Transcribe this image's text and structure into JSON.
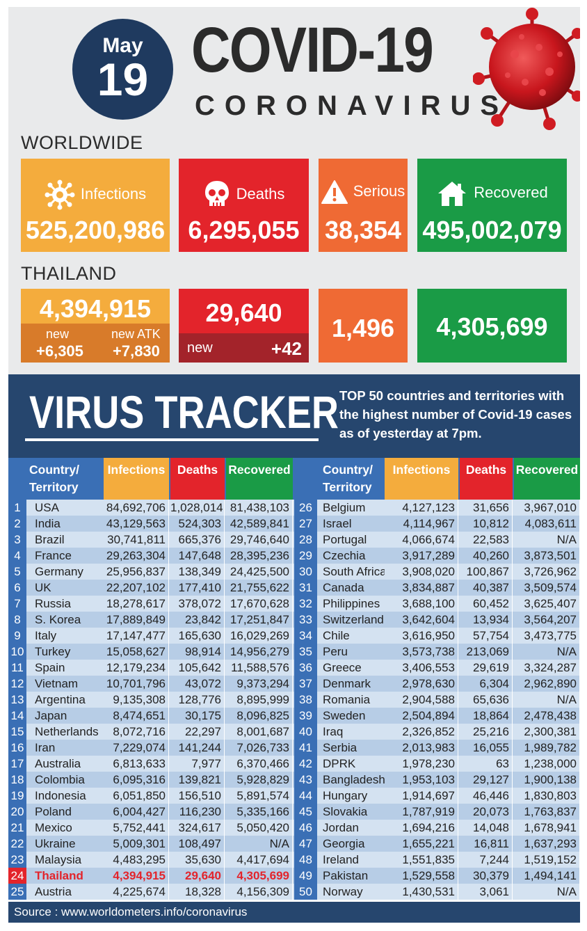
{
  "header": {
    "month": "May",
    "day": "19",
    "title": "COVID-19",
    "subtitle": "CORONAVIRUS"
  },
  "worldwide": {
    "label": "WORLDWIDE",
    "infections_label": "Infections",
    "infections": "525,200,986",
    "deaths_label": "Deaths",
    "deaths": "6,295,055",
    "serious_label": "Serious",
    "serious": "38,354",
    "recovered_label": "Recovered",
    "recovered": "495,002,079"
  },
  "thailand": {
    "label": "THAILAND",
    "infections": "4,394,915",
    "new_label": "new",
    "new_infections": "+6,305",
    "new_atk_label": "new ATK",
    "new_atk": "+7,830",
    "deaths": "29,640",
    "deaths_new_label": "new",
    "deaths_new": "+42",
    "serious": "1,496",
    "recovered": "4,305,699"
  },
  "tracker": {
    "title": "VIRUS TRACKER",
    "desc_bold": "TOP 50",
    "desc_rest": " countries and territories with the highest number of Covid-19 cases as of yesterday at 7pm."
  },
  "table": {
    "headers": {
      "country": "Country/ Territory",
      "infections": "Infections",
      "deaths": "Deaths",
      "recovered": "Recovered"
    },
    "highlight_rank": "24",
    "rows": [
      [
        "1",
        "USA",
        "84,692,706",
        "1,028,014",
        "81,438,103"
      ],
      [
        "2",
        "India",
        "43,129,563",
        "524,303",
        "42,589,841"
      ],
      [
        "3",
        "Brazil",
        "30,741,811",
        "665,376",
        "29,746,640"
      ],
      [
        "4",
        "France",
        "29,263,304",
        "147,648",
        "28,395,236"
      ],
      [
        "5",
        "Germany",
        "25,956,837",
        "138,349",
        "24,425,500"
      ],
      [
        "6",
        "UK",
        "22,207,102",
        "177,410",
        "21,755,622"
      ],
      [
        "7",
        "Russia",
        "18,278,617",
        "378,072",
        "17,670,628"
      ],
      [
        "8",
        "S. Korea",
        "17,889,849",
        "23,842",
        "17,251,847"
      ],
      [
        "9",
        "Italy",
        "17,147,477",
        "165,630",
        "16,029,269"
      ],
      [
        "10",
        "Turkey",
        "15,058,627",
        "98,914",
        "14,956,279"
      ],
      [
        "11",
        "Spain",
        "12,179,234",
        "105,642",
        "11,588,576"
      ],
      [
        "12",
        "Vietnam",
        "10,701,796",
        "43,072",
        "9,373,294"
      ],
      [
        "13",
        "Argentina",
        "9,135,308",
        "128,776",
        "8,895,999"
      ],
      [
        "14",
        "Japan",
        "8,474,651",
        "30,175",
        "8,096,825"
      ],
      [
        "15",
        "Netherlands",
        "8,072,716",
        "22,297",
        "8,001,687"
      ],
      [
        "16",
        "Iran",
        "7,229,074",
        "141,244",
        "7,026,733"
      ],
      [
        "17",
        "Australia",
        "6,813,633",
        "7,977",
        "6,370,466"
      ],
      [
        "18",
        "Colombia",
        "6,095,316",
        "139,821",
        "5,928,829"
      ],
      [
        "19",
        "Indonesia",
        "6,051,850",
        "156,510",
        "5,891,574"
      ],
      [
        "20",
        "Poland",
        "6,004,427",
        "116,230",
        "5,335,166"
      ],
      [
        "21",
        "Mexico",
        "5,752,441",
        "324,617",
        "5,050,420"
      ],
      [
        "22",
        "Ukraine",
        "5,009,301",
        "108,497",
        "N/A"
      ],
      [
        "23",
        "Malaysia",
        "4,483,295",
        "35,630",
        "4,417,694"
      ],
      [
        "24",
        "Thailand",
        "4,394,915",
        "29,640",
        "4,305,699"
      ],
      [
        "25",
        "Austria",
        "4,225,674",
        "18,328",
        "4,156,309"
      ],
      [
        "26",
        "Belgium",
        "4,127,123",
        "31,656",
        "3,967,010"
      ],
      [
        "27",
        "Israel",
        "4,114,967",
        "10,812",
        "4,083,611"
      ],
      [
        "28",
        "Portugal",
        "4,066,674",
        "22,583",
        "N/A"
      ],
      [
        "29",
        "Czechia",
        "3,917,289",
        "40,260",
        "3,873,501"
      ],
      [
        "30",
        "South Africa",
        "3,908,020",
        "100,867",
        "3,726,962"
      ],
      [
        "31",
        "Canada",
        "3,834,887",
        "40,387",
        "3,509,574"
      ],
      [
        "32",
        "Philippines",
        "3,688,100",
        "60,452",
        "3,625,407"
      ],
      [
        "33",
        "Switzerland",
        "3,642,604",
        "13,934",
        "3,564,207"
      ],
      [
        "34",
        "Chile",
        "3,616,950",
        "57,754",
        "3,473,775"
      ],
      [
        "35",
        "Peru",
        "3,573,738",
        "213,069",
        "N/A"
      ],
      [
        "36",
        "Greece",
        "3,406,553",
        "29,619",
        "3,324,287"
      ],
      [
        "37",
        "Denmark",
        "2,978,630",
        "6,304",
        "2,962,890"
      ],
      [
        "38",
        "Romania",
        "2,904,588",
        "65,636",
        "N/A"
      ],
      [
        "39",
        "Sweden",
        "2,504,894",
        "18,864",
        "2,478,438"
      ],
      [
        "40",
        "Iraq",
        "2,326,852",
        "25,216",
        "2,300,381"
      ],
      [
        "41",
        "Serbia",
        "2,013,983",
        "16,055",
        "1,989,782"
      ],
      [
        "42",
        "DPRK",
        "1,978,230",
        "63",
        "1,238,000"
      ],
      [
        "43",
        "Bangladesh",
        "1,953,103",
        "29,127",
        "1,900,138"
      ],
      [
        "44",
        "Hungary",
        "1,914,697",
        "46,446",
        "1,830,803"
      ],
      [
        "45",
        "Slovakia",
        "1,787,919",
        "20,073",
        "1,763,837"
      ],
      [
        "46",
        "Jordan",
        "1,694,216",
        "14,048",
        "1,678,941"
      ],
      [
        "47",
        "Georgia",
        "1,655,221",
        "16,811",
        "1,637,293"
      ],
      [
        "48",
        "Ireland",
        "1,551,835",
        "7,244",
        "1,519,152"
      ],
      [
        "49",
        "Pakistan",
        "1,529,558",
        "30,379",
        "1,494,141"
      ],
      [
        "50",
        "Norway",
        "1,430,531",
        "3,061",
        "N/A"
      ]
    ]
  },
  "source": "Source : www.worldometers.info/coronavirus",
  "colors": {
    "navy": "#1f3a5f",
    "tracker_bg": "#26466e",
    "orange": "#f4ac3d",
    "red": "#e3242b",
    "dark_orange": "#ef6a34",
    "green": "#1a9b46",
    "row_light": "#d4e2f1",
    "row_dark": "#b7cde6",
    "rank_blue": "#3a6fb5"
  },
  "icons": [
    "virus-icon",
    "skull-icon",
    "warning-icon",
    "house-icon"
  ]
}
